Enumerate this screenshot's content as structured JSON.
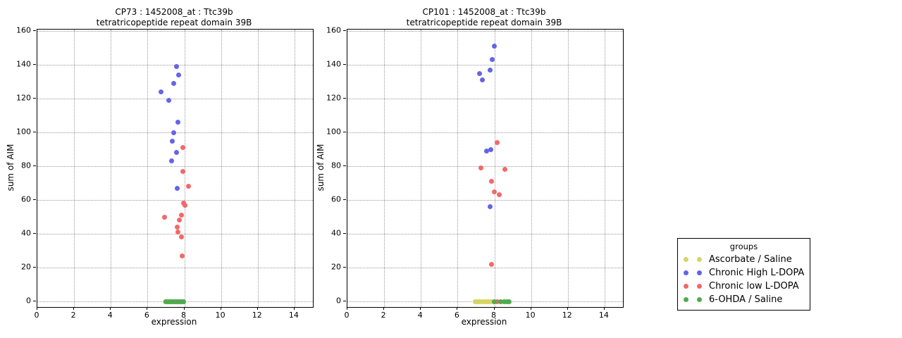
{
  "figure": {
    "background": "#ffffff"
  },
  "colors": {
    "ascorbate_saline": "#d6d565",
    "chronic_high_ldopa": "#6464e8",
    "chronic_low_ldopa": "#f36868",
    "ohda_saline": "#4fab4f",
    "grid": "#9a9a9a",
    "axis": "#000000"
  },
  "legend": {
    "title": "groups",
    "entries": [
      {
        "label": "Ascorbate / Saline",
        "color": "#d6d565"
      },
      {
        "label": "Chronic High L-DOPA",
        "color": "#6464e8"
      },
      {
        "label": "Chronic low L-DOPA",
        "color": "#f36868"
      },
      {
        "label": "6-OHDA / Saline",
        "color": "#4fab4f"
      }
    ]
  },
  "chart_data": [
    {
      "type": "scatter",
      "title_line1": "CP73 : 1452008_at : Ttc39b",
      "title_line2": "tetratricopeptide repeat domain 39B",
      "xlabel": "expression",
      "ylabel": "sum of AIM",
      "xlim": [
        0,
        15
      ],
      "ylim": [
        -3.3,
        160.8
      ],
      "xticks": [
        0,
        2,
        4,
        6,
        8,
        10,
        12,
        14
      ],
      "yticks": [
        0,
        20,
        40,
        60,
        80,
        100,
        120,
        140,
        160
      ],
      "grid": true,
      "series": [
        {
          "name": "Ascorbate / Saline",
          "color": "#d6d565",
          "points": [
            [
              6.95,
              0
            ],
            [
              7.1,
              0
            ],
            [
              7.25,
              0
            ],
            [
              7.4,
              0
            ],
            [
              7.55,
              0
            ],
            [
              7.7,
              0
            ],
            [
              7.85,
              0
            ]
          ]
        },
        {
          "name": "Chronic High L-DOPA",
          "color": "#6464e8",
          "points": [
            [
              7.56,
              139
            ],
            [
              7.7,
              134
            ],
            [
              7.44,
              129
            ],
            [
              6.74,
              124
            ],
            [
              7.16,
              119
            ],
            [
              7.65,
              106
            ],
            [
              7.43,
              100
            ],
            [
              7.35,
              95
            ],
            [
              7.57,
              88
            ],
            [
              7.3,
              83
            ],
            [
              7.61,
              67
            ]
          ]
        },
        {
          "name": "Chronic low L-DOPA",
          "color": "#f36868",
          "points": [
            [
              7.94,
              91
            ],
            [
              7.93,
              77
            ],
            [
              8.23,
              68
            ],
            [
              7.97,
              58
            ],
            [
              8.04,
              57
            ],
            [
              7.85,
              51
            ],
            [
              6.92,
              50
            ],
            [
              7.74,
              48
            ],
            [
              7.62,
              44
            ],
            [
              7.67,
              41
            ],
            [
              7.86,
              38
            ],
            [
              7.9,
              27
            ]
          ]
        },
        {
          "name": "6-OHDA / Saline",
          "color": "#4fab4f",
          "points": [
            [
              7.0,
              0
            ],
            [
              7.12,
              0
            ],
            [
              7.22,
              0
            ],
            [
              7.32,
              0
            ],
            [
              7.45,
              0
            ],
            [
              7.55,
              0
            ],
            [
              7.65,
              0
            ],
            [
              7.75,
              0
            ],
            [
              7.85,
              0
            ],
            [
              7.95,
              0
            ]
          ]
        }
      ]
    },
    {
      "type": "scatter",
      "title_line1": "CP101 : 1452008_at : Ttc39b",
      "title_line2": "tetratricopeptide repeat domain 39B",
      "xlabel": "expression",
      "ylabel": "sum of AIM",
      "xlim": [
        0,
        15
      ],
      "ylim": [
        -3.3,
        160.8
      ],
      "xticks": [
        0,
        2,
        4,
        6,
        8,
        10,
        12,
        14
      ],
      "yticks": [
        0,
        20,
        40,
        60,
        80,
        100,
        120,
        140,
        160
      ],
      "grid": true,
      "series": [
        {
          "name": "Ascorbate / Saline",
          "color": "#d6d565",
          "points": [
            [
              6.95,
              0
            ],
            [
              7.08,
              0
            ],
            [
              7.2,
              0
            ],
            [
              7.33,
              0
            ],
            [
              7.45,
              0
            ],
            [
              7.58,
              0
            ],
            [
              7.7,
              0
            ],
            [
              7.85,
              0
            ]
          ]
        },
        {
          "name": "Chronic High L-DOPA",
          "color": "#6464e8",
          "points": [
            [
              7.99,
              151
            ],
            [
              7.87,
              143
            ],
            [
              7.76,
              137
            ],
            [
              7.2,
              135
            ],
            [
              7.35,
              131
            ],
            [
              7.82,
              90
            ],
            [
              7.59,
              89
            ],
            [
              7.75,
              56
            ]
          ]
        },
        {
          "name": "Chronic low L-DOPA",
          "color": "#f36868",
          "points": [
            [
              8.14,
              94
            ],
            [
              7.26,
              79
            ],
            [
              8.58,
              78
            ],
            [
              7.84,
              71
            ],
            [
              7.99,
              65
            ],
            [
              8.27,
              63
            ],
            [
              7.84,
              22
            ],
            [
              8.14,
              0
            ]
          ]
        },
        {
          "name": "6-OHDA / Saline",
          "color": "#4fab4f",
          "points": [
            [
              7.98,
              0
            ],
            [
              8.35,
              0
            ],
            [
              8.55,
              0
            ],
            [
              8.7,
              0
            ],
            [
              8.82,
              0
            ]
          ]
        }
      ]
    }
  ]
}
